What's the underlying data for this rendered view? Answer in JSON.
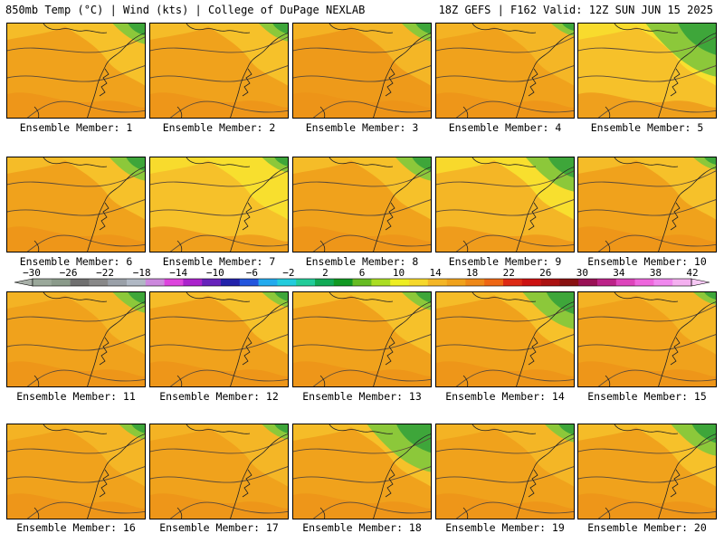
{
  "header": {
    "left": "850mb Temp (°C) | Wind (kts) | College of DuPage NEXLAB",
    "right": "18Z GEFS | F162 Valid: 12Z SUN JUN 15 2025"
  },
  "members": [
    {
      "label": "Ensemble Member: 1",
      "base": "#f0a21c",
      "accent": "#f6c12a",
      "green": 0.25
    },
    {
      "label": "Ensemble Member: 2",
      "base": "#f0a21c",
      "accent": "#f6c12a",
      "green": 0.2
    },
    {
      "label": "Ensemble Member: 3",
      "base": "#ee9a1a",
      "accent": "#f4b626",
      "green": 0.2
    },
    {
      "label": "Ensemble Member: 4",
      "base": "#f0a21c",
      "accent": "#f4b626",
      "green": 0.1
    },
    {
      "label": "Ensemble Member: 5",
      "base": "#f6c12a",
      "accent": "#f8df2e",
      "green": 0.85
    },
    {
      "label": "Ensemble Member: 6",
      "base": "#f0a21c",
      "accent": "#f6c12a",
      "green": 0.3
    },
    {
      "label": "Ensemble Member: 7",
      "base": "#f6c12a",
      "accent": "#f8df2e",
      "green": 0.15
    },
    {
      "label": "Ensemble Member: 8",
      "base": "#f0a21c",
      "accent": "#f6c12a",
      "green": 0.3
    },
    {
      "label": "Ensemble Member: 9",
      "base": "#f4b626",
      "accent": "#f8df2e",
      "green": 0.5
    },
    {
      "label": "Ensemble Member: 10",
      "base": "#f0a21c",
      "accent": "#f6c12a",
      "green": 0.1
    },
    {
      "label": "Ensemble Member: 11",
      "base": "#f0a21c",
      "accent": "#f4b626",
      "green": 0.25
    },
    {
      "label": "Ensemble Member: 12",
      "base": "#f0a21c",
      "accent": "#f6c12a",
      "green": 0.15
    },
    {
      "label": "Ensemble Member: 13",
      "base": "#f0a21c",
      "accent": "#f6c12a",
      "green": 0.2
    },
    {
      "label": "Ensemble Member: 14",
      "base": "#f0a21c",
      "accent": "#f6c12a",
      "green": 0.55
    },
    {
      "label": "Ensemble Member: 15",
      "base": "#f0a21c",
      "accent": "#f4b626",
      "green": 0.1
    },
    {
      "label": "Ensemble Member: 16",
      "base": "#f0a21c",
      "accent": "#f4b626",
      "green": 0.15
    },
    {
      "label": "Ensemble Member: 17",
      "base": "#f0a21c",
      "accent": "#f4b626",
      "green": 0.15
    },
    {
      "label": "Ensemble Member: 18",
      "base": "#f0a21c",
      "accent": "#f6c12a",
      "green": 0.75
    },
    {
      "label": "Ensemble Member: 19",
      "base": "#f0a21c",
      "accent": "#f4b626",
      "green": 0.2
    },
    {
      "label": "Ensemble Member: 20",
      "base": "#f0a21c",
      "accent": "#f6c12a",
      "green": 0.45
    }
  ],
  "colorbar": {
    "labels": [
      "−30",
      "−26",
      "−22",
      "−18",
      "−14",
      "−10",
      "−6",
      "−2",
      "2",
      "6",
      "10",
      "14",
      "18",
      "22",
      "26",
      "30",
      "34",
      "38",
      "42"
    ],
    "colors": [
      "#9aa89a",
      "#8a9a8a",
      "#707070",
      "#888888",
      "#9aa0a8",
      "#b0b8c4",
      "#cc88dd",
      "#dd44dd",
      "#aa22cc",
      "#6622bb",
      "#2222aa",
      "#2255dd",
      "#22aaee",
      "#22ccdd",
      "#22cc99",
      "#11aa55",
      "#119922",
      "#66bb22",
      "#aadd22",
      "#eeee22",
      "#f6d82a",
      "#f4b626",
      "#f0a21c",
      "#ee8818",
      "#ee6614",
      "#dd2a14",
      "#cc1111",
      "#aa1111",
      "#881111",
      "#991155",
      "#bb2288",
      "#dd44bb",
      "#ee66dd",
      "#f088ee",
      "#f4b0f0"
    ]
  }
}
